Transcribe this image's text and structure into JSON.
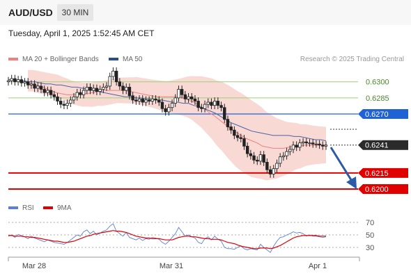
{
  "header": {
    "symbol": "AUD/USD",
    "timeframe": "30 MIN",
    "datetime": "Tuesday, April 1, 2025 1:52:45 AM CET"
  },
  "legend": {
    "ma20": {
      "label": "MA 20 + Bollinger Bands",
      "color": "#f08080"
    },
    "ma50": {
      "label": "MA 50",
      "color": "#2a4d8f"
    },
    "rsi": {
      "label": "RSI",
      "color": "#5b7fd6"
    },
    "ma9": {
      "label": "9MA",
      "color": "#e00000"
    },
    "copyright": "Research © 2025 Trading Central"
  },
  "chart_data": [
    {
      "type": "candlestick",
      "title": "AUD/USD 30 MIN",
      "ylim": [
        0.619,
        0.6313
      ],
      "x_ticks": [
        "Mar 28",
        "Mar 31",
        "Apr 1"
      ],
      "levels": [
        {
          "value": 0.63,
          "label": "0.6300",
          "style": "green-line"
        },
        {
          "value": 0.6285,
          "label": "0.6285",
          "style": "green-line"
        },
        {
          "value": 0.627,
          "label": "0.6270",
          "style": "blue-line-tag"
        },
        {
          "value": 0.6241,
          "label": "0.6241",
          "style": "current-price-tag"
        },
        {
          "value": 0.6215,
          "label": "0.6215",
          "style": "red-line-tag"
        },
        {
          "value": 0.62,
          "label": "0.6200",
          "style": "red-line-tag"
        }
      ],
      "close": [
        0.6301,
        0.6303,
        0.63,
        0.6302,
        0.6299,
        0.63,
        0.6297,
        0.6298,
        0.6294,
        0.6296,
        0.6293,
        0.629,
        0.6292,
        0.6288,
        0.6286,
        0.6282,
        0.6279,
        0.6278,
        0.628,
        0.6283,
        0.6286,
        0.629,
        0.6288,
        0.6292,
        0.6295,
        0.6292,
        0.6294,
        0.6291,
        0.6293,
        0.6295,
        0.6296,
        0.6305,
        0.631,
        0.63,
        0.6296,
        0.6292,
        0.6295,
        0.6287,
        0.6283,
        0.6282,
        0.6284,
        0.6281,
        0.6283,
        0.6282,
        0.6284,
        0.6283,
        0.6281,
        0.6275,
        0.6272,
        0.6276,
        0.628,
        0.6285,
        0.6293,
        0.6288,
        0.6284,
        0.6286,
        0.6284,
        0.6282,
        0.6276,
        0.6275,
        0.6279,
        0.6281,
        0.6278,
        0.6282,
        0.6278,
        0.6276,
        0.6265,
        0.6258,
        0.6255,
        0.625,
        0.6248,
        0.6247,
        0.624,
        0.6233,
        0.6231,
        0.6227,
        0.6226,
        0.6232,
        0.6225,
        0.6218,
        0.6214,
        0.6219,
        0.6224,
        0.623,
        0.6231,
        0.6235,
        0.6237,
        0.6241,
        0.6239,
        0.6243,
        0.6244,
        0.6243,
        0.6243,
        0.6242,
        0.6242,
        0.6241,
        0.624,
        0.6241
      ],
      "series": [
        {
          "name": "MA 20",
          "values": [
            0.6301,
            0.6301,
            0.63,
            0.6299,
            0.6298,
            0.6297,
            0.6296,
            0.6294,
            0.6292,
            0.629,
            0.6289,
            0.6288,
            0.6288,
            0.6288,
            0.6289,
            0.6289,
            0.629,
            0.6291,
            0.6292,
            0.6292,
            0.6292,
            0.6292,
            0.6292,
            0.6291,
            0.629,
            0.6289,
            0.6288,
            0.6287,
            0.6286,
            0.6286,
            0.6286,
            0.6286,
            0.6286,
            0.6285,
            0.6283,
            0.6281,
            0.6278,
            0.6275,
            0.6271,
            0.6268,
            0.6264,
            0.626,
            0.6256,
            0.6253,
            0.625,
            0.6247,
            0.6245,
            0.6243,
            0.624,
            0.6239,
            0.6238,
            0.6238,
            0.6238,
            0.6239,
            0.624,
            0.624,
            0.6241,
            0.6241,
            0.6241,
            0.6241,
            0.6241
          ]
        },
        {
          "name": "MA 50",
          "values": [
            0.6302,
            0.6302,
            0.6301,
            0.6301,
            0.63,
            0.63,
            0.6299,
            0.6298,
            0.6298,
            0.6297,
            0.6297,
            0.6296,
            0.6295,
            0.6295,
            0.6294,
            0.6293,
            0.6292,
            0.6291,
            0.629,
            0.6289,
            0.6288,
            0.6287,
            0.6286,
            0.6286,
            0.6285,
            0.6285,
            0.6284,
            0.6284,
            0.6283,
            0.6283,
            0.6282,
            0.6281,
            0.6281,
            0.628,
            0.628,
            0.6278,
            0.6277,
            0.6275,
            0.6273,
            0.6271,
            0.6268,
            0.6265,
            0.6262,
            0.626,
            0.6258,
            0.6256,
            0.6254,
            0.6253,
            0.6252,
            0.6251,
            0.625,
            0.625,
            0.625,
            0.625,
            0.6249,
            0.6249,
            0.6248,
            0.6247,
            0.6246,
            0.6246,
            0.6245
          ]
        }
      ]
    },
    {
      "type": "line",
      "title": "RSI",
      "ylim": [
        20,
        80
      ],
      "y_ticks": [
        70,
        50,
        30
      ],
      "series": [
        {
          "name": "RSI",
          "values": [
            48,
            50,
            46,
            51,
            49,
            47,
            44,
            48,
            45,
            43,
            41,
            39,
            42,
            40,
            38,
            37,
            36,
            35,
            38,
            42,
            46,
            50,
            48,
            55,
            58,
            52,
            56,
            50,
            53,
            56,
            58,
            64,
            68,
            56,
            52,
            48,
            54,
            46,
            44,
            42,
            45,
            41,
            44,
            43,
            46,
            45,
            43,
            38,
            35,
            40,
            46,
            52,
            62,
            55,
            48,
            50,
            47,
            45,
            38,
            36,
            44,
            47,
            42,
            48,
            43,
            40,
            30,
            28,
            28,
            27,
            30,
            33,
            28,
            26,
            28,
            27,
            26,
            35,
            30,
            26,
            22,
            32,
            40,
            46,
            47,
            50,
            52,
            55,
            53,
            54,
            52,
            48,
            50,
            48,
            48,
            47,
            46,
            47
          ]
        },
        {
          "name": "9MA",
          "values": [
            49,
            49,
            48,
            48,
            48,
            47,
            47,
            46,
            46,
            45,
            44,
            43,
            42,
            41,
            40,
            40,
            39,
            38,
            38,
            39,
            40,
            42,
            44,
            46,
            48,
            49,
            51,
            52,
            53,
            54,
            55,
            56,
            57,
            56,
            56,
            55,
            54,
            52,
            50,
            48,
            47,
            46,
            45,
            45,
            44,
            44,
            44,
            43,
            42,
            42,
            42,
            44,
            46,
            47,
            48,
            48,
            47,
            47,
            46,
            45,
            44,
            44,
            43,
            43,
            43,
            42,
            40,
            38,
            37,
            36,
            34,
            32,
            31,
            30,
            29,
            28,
            28,
            29,
            29,
            29,
            28,
            29,
            31,
            33,
            36,
            39,
            42,
            45,
            47,
            48,
            49,
            49,
            49,
            49,
            49,
            48,
            48,
            48
          ]
        }
      ]
    }
  ]
}
